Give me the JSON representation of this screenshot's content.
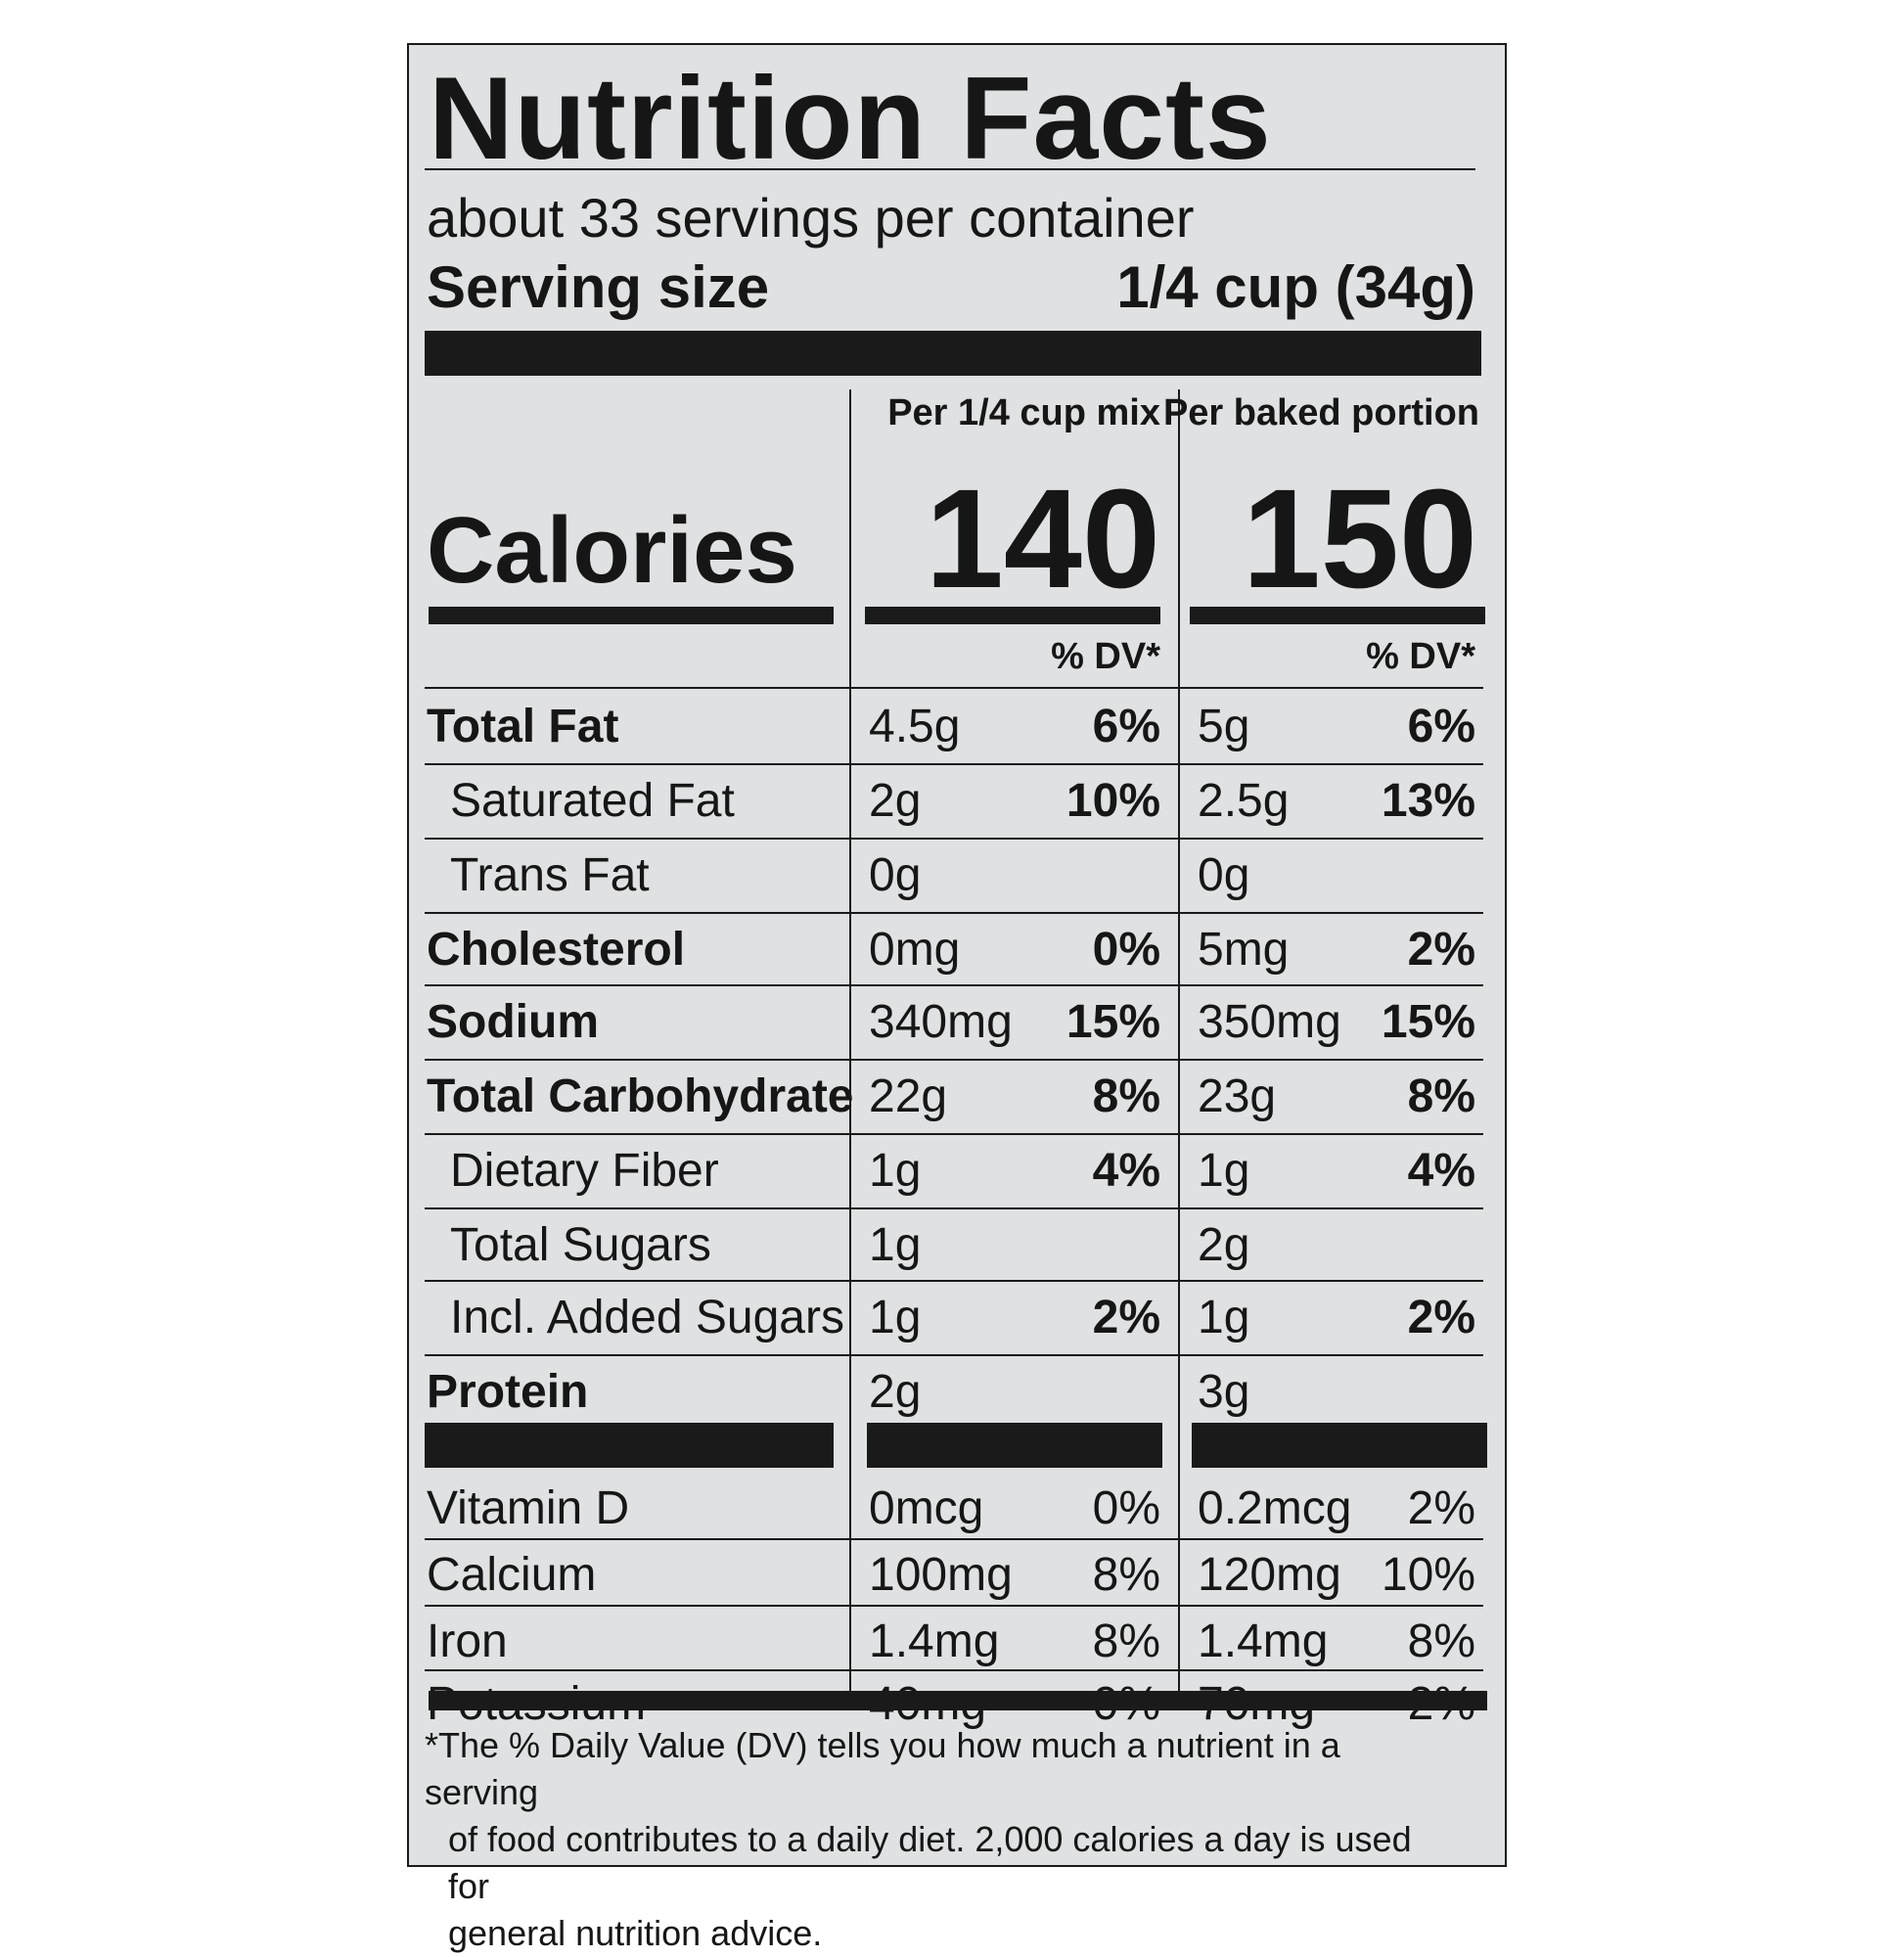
{
  "label": {
    "title": "Nutrition Facts",
    "servings_per_container": "about 33 servings per container",
    "serving_size_label": "Serving size",
    "serving_size_value": "1/4 cup (34g)",
    "columns": [
      "Per 1/4 cup mix",
      "Per baked portion"
    ],
    "calories_label": "Calories",
    "calories": [
      "140",
      "150"
    ],
    "dv_header": "% DV*",
    "nutrients": [
      {
        "name": "Total Fat",
        "mix_amount": "4.5g",
        "mix_dv": "6%",
        "baked_amount": "5g",
        "baked_dv": "6%"
      },
      {
        "name": "Saturated Fat",
        "mix_amount": "2g",
        "mix_dv": "10%",
        "baked_amount": "2.5g",
        "baked_dv": "13%"
      },
      {
        "name": "Trans Fat",
        "mix_amount": "0g",
        "mix_dv": "",
        "baked_amount": "0g",
        "baked_dv": ""
      },
      {
        "name": "Cholesterol",
        "mix_amount": "0mg",
        "mix_dv": "0%",
        "baked_amount": "5mg",
        "baked_dv": "2%"
      },
      {
        "name": "Sodium",
        "mix_amount": "340mg",
        "mix_dv": "15%",
        "baked_amount": "350mg",
        "baked_dv": "15%"
      },
      {
        "name": "Total Carbohydrate",
        "mix_amount": "22g",
        "mix_dv": "8%",
        "baked_amount": "23g",
        "baked_dv": "8%"
      },
      {
        "name": "Dietary Fiber",
        "mix_amount": "1g",
        "mix_dv": "4%",
        "baked_amount": "1g",
        "baked_dv": "4%"
      },
      {
        "name": "Total Sugars",
        "mix_amount": "1g",
        "mix_dv": "",
        "baked_amount": "2g",
        "baked_dv": ""
      },
      {
        "name": "Incl. Added Sugars",
        "mix_amount": "1g",
        "mix_dv": "2%",
        "baked_amount": "1g",
        "baked_dv": "2%"
      },
      {
        "name": "Protein",
        "mix_amount": "2g",
        "mix_dv": "",
        "baked_amount": "3g",
        "baked_dv": ""
      }
    ],
    "vitamins": [
      {
        "name": "Vitamin D",
        "mix_amount": "0mcg",
        "mix_dv": "0%",
        "baked_amount": "0.2mcg",
        "baked_dv": "2%"
      },
      {
        "name": "Calcium",
        "mix_amount": "100mg",
        "mix_dv": "8%",
        "baked_amount": "120mg",
        "baked_dv": "10%"
      },
      {
        "name": "Iron",
        "mix_amount": "1.4mg",
        "mix_dv": "8%",
        "baked_amount": "1.4mg",
        "baked_dv": "8%"
      },
      {
        "name": "Potassium",
        "mix_amount": "40mg",
        "mix_dv": "0%",
        "baked_amount": "70mg",
        "baked_dv": "2%"
      }
    ],
    "footnote": [
      "*The % Daily Value (DV) tells you how much a nutrient in a serving",
      "of food contributes to a daily diet.  2,000 calories a day is used for",
      "general nutrition advice."
    ]
  }
}
